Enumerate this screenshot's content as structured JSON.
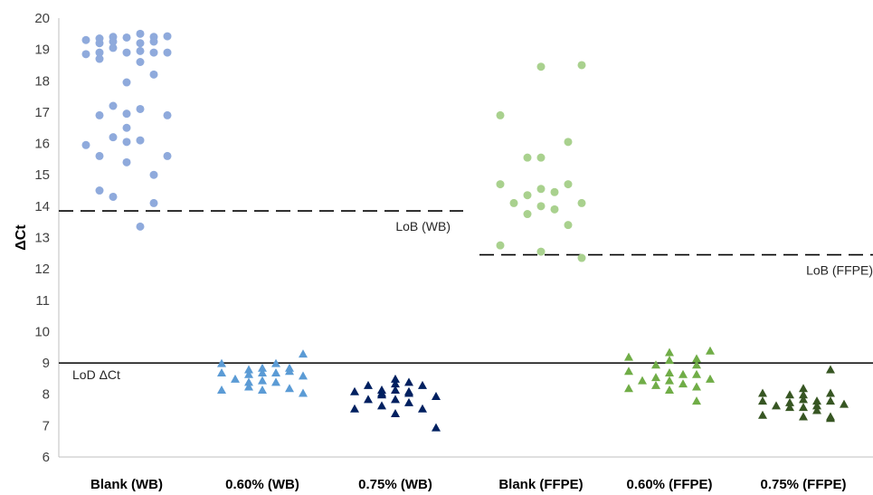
{
  "chart_data": {
    "type": "scatter",
    "ylabel": "ΔCt",
    "ylim": [
      6,
      20
    ],
    "yticks": [
      6,
      7,
      8,
      9,
      10,
      11,
      12,
      13,
      14,
      15,
      16,
      17,
      18,
      19,
      20
    ],
    "categories": [
      "Blank (WB)",
      "0.60% (WB)",
      "0.75% (WB)",
      "Blank (FFPE)",
      "0.60% (FFPE)",
      "0.75% (FFPE)"
    ],
    "series": [
      {
        "category": "Blank (WB)",
        "marker": "circle",
        "color": "#8faadc",
        "points": [
          [
            -0.45,
            19.3
          ],
          [
            -0.3,
            19.35
          ],
          [
            -0.3,
            19.2
          ],
          [
            -0.15,
            19.4
          ],
          [
            -0.15,
            19.25
          ],
          [
            0.0,
            19.38
          ],
          [
            0.15,
            19.5
          ],
          [
            0.15,
            19.2
          ],
          [
            0.3,
            19.4
          ],
          [
            0.3,
            19.25
          ],
          [
            0.45,
            19.42
          ],
          [
            -0.45,
            18.85
          ],
          [
            -0.3,
            18.9
          ],
          [
            -0.3,
            18.7
          ],
          [
            -0.15,
            19.05
          ],
          [
            0.0,
            18.9
          ],
          [
            0.15,
            18.95
          ],
          [
            0.15,
            18.6
          ],
          [
            0.3,
            18.9
          ],
          [
            0.45,
            18.9
          ],
          [
            0.3,
            18.2
          ],
          [
            0.0,
            17.95
          ],
          [
            -0.15,
            17.2
          ],
          [
            0.15,
            17.1
          ],
          [
            -0.3,
            16.9
          ],
          [
            0.0,
            16.95
          ],
          [
            0.45,
            16.9
          ],
          [
            0.0,
            16.5
          ],
          [
            -0.15,
            16.2
          ],
          [
            0.0,
            16.05
          ],
          [
            0.15,
            16.1
          ],
          [
            -0.45,
            15.95
          ],
          [
            -0.3,
            15.6
          ],
          [
            0.45,
            15.6
          ],
          [
            0.0,
            15.4
          ],
          [
            0.3,
            15.0
          ],
          [
            -0.3,
            14.5
          ],
          [
            -0.15,
            14.3
          ],
          [
            0.3,
            14.1
          ],
          [
            0.15,
            13.35
          ]
        ]
      },
      {
        "category": "0.60% (WB)",
        "marker": "triangle",
        "color": "#5b9bd5",
        "points": [
          [
            -0.45,
            9.0
          ],
          [
            -0.45,
            8.7
          ],
          [
            -0.45,
            8.15
          ],
          [
            -0.3,
            8.5
          ],
          [
            -0.15,
            8.8
          ],
          [
            -0.15,
            8.65
          ],
          [
            -0.15,
            8.4
          ],
          [
            -0.15,
            8.25
          ],
          [
            0.0,
            8.85
          ],
          [
            0.0,
            8.7
          ],
          [
            0.0,
            8.45
          ],
          [
            0.0,
            8.15
          ],
          [
            0.15,
            9.0
          ],
          [
            0.15,
            8.7
          ],
          [
            0.15,
            8.4
          ],
          [
            0.3,
            8.85
          ],
          [
            0.3,
            8.75
          ],
          [
            0.3,
            8.2
          ],
          [
            0.45,
            9.3
          ],
          [
            0.45,
            8.6
          ],
          [
            0.45,
            8.05
          ]
        ]
      },
      {
        "category": "0.75% (WB)",
        "marker": "triangle",
        "color": "#002060",
        "points": [
          [
            -0.45,
            8.1
          ],
          [
            -0.45,
            7.55
          ],
          [
            -0.3,
            8.3
          ],
          [
            -0.3,
            7.85
          ],
          [
            -0.15,
            8.05
          ],
          [
            -0.15,
            7.65
          ],
          [
            0.0,
            8.5
          ],
          [
            0.0,
            8.15
          ],
          [
            0.0,
            7.85
          ],
          [
            0.0,
            7.4
          ],
          [
            0.15,
            8.4
          ],
          [
            0.15,
            8.05
          ],
          [
            0.15,
            7.75
          ],
          [
            0.3,
            8.3
          ],
          [
            0.3,
            7.55
          ],
          [
            0.45,
            7.95
          ],
          [
            0.45,
            6.95
          ],
          [
            -0.15,
            8.0
          ],
          [
            0.0,
            8.35
          ],
          [
            0.15,
            8.1
          ],
          [
            -0.15,
            8.15
          ]
        ]
      },
      {
        "category": "Blank (FFPE)",
        "marker": "circle",
        "color": "#a9d18e",
        "points": [
          [
            -0.45,
            16.9
          ],
          [
            0.0,
            18.45
          ],
          [
            0.45,
            18.5
          ],
          [
            -0.45,
            14.7
          ],
          [
            -0.3,
            14.1
          ],
          [
            -0.15,
            15.55
          ],
          [
            -0.15,
            14.35
          ],
          [
            -0.15,
            13.75
          ],
          [
            0.0,
            15.55
          ],
          [
            0.0,
            14.55
          ],
          [
            0.0,
            14.0
          ],
          [
            0.15,
            14.45
          ],
          [
            0.15,
            13.9
          ],
          [
            0.3,
            16.05
          ],
          [
            0.3,
            14.7
          ],
          [
            0.3,
            13.4
          ],
          [
            0.45,
            14.1
          ],
          [
            -0.45,
            12.75
          ],
          [
            0.0,
            12.55
          ],
          [
            0.45,
            12.35
          ]
        ]
      },
      {
        "category": "0.60% (FFPE)",
        "marker": "triangle",
        "color": "#70ad47",
        "points": [
          [
            -0.45,
            9.2
          ],
          [
            -0.45,
            8.75
          ],
          [
            -0.45,
            8.2
          ],
          [
            -0.3,
            8.45
          ],
          [
            -0.15,
            8.95
          ],
          [
            -0.15,
            8.55
          ],
          [
            -0.15,
            8.3
          ],
          [
            0.0,
            9.35
          ],
          [
            0.0,
            9.1
          ],
          [
            0.0,
            8.7
          ],
          [
            0.0,
            8.45
          ],
          [
            0.0,
            8.15
          ],
          [
            0.15,
            8.65
          ],
          [
            0.15,
            8.35
          ],
          [
            0.3,
            9.15
          ],
          [
            0.3,
            8.95
          ],
          [
            0.3,
            8.65
          ],
          [
            0.3,
            8.25
          ],
          [
            0.3,
            7.8
          ],
          [
            0.45,
            9.4
          ],
          [
            0.45,
            8.5
          ]
        ]
      },
      {
        "category": "0.75% (FFPE)",
        "marker": "triangle",
        "color": "#375623",
        "points": [
          [
            -0.45,
            8.05
          ],
          [
            -0.45,
            7.8
          ],
          [
            -0.45,
            7.35
          ],
          [
            -0.3,
            7.65
          ],
          [
            -0.15,
            8.0
          ],
          [
            -0.15,
            7.75
          ],
          [
            -0.15,
            7.6
          ],
          [
            0.0,
            8.2
          ],
          [
            0.0,
            8.0
          ],
          [
            0.0,
            7.85
          ],
          [
            0.0,
            7.6
          ],
          [
            0.0,
            7.3
          ],
          [
            0.15,
            7.8
          ],
          [
            0.15,
            7.65
          ],
          [
            0.3,
            8.05
          ],
          [
            0.3,
            7.8
          ],
          [
            0.3,
            7.3
          ],
          [
            0.3,
            7.25
          ],
          [
            0.3,
            8.8
          ],
          [
            0.45,
            7.7
          ],
          [
            0.15,
            7.5
          ]
        ]
      }
    ],
    "reference_lines": [
      {
        "label": "LoB (WB)",
        "y": 13.85,
        "style": "dashed",
        "from_category": 0,
        "to_category": 2
      },
      {
        "label": "LoB (FFPE)",
        "y": 12.45,
        "style": "dashed",
        "from_category": 3,
        "to_category": 5
      },
      {
        "label": "LoD ΔCt",
        "y": 9.0,
        "style": "solid",
        "from_category": 0,
        "to_category": 5
      }
    ],
    "grid": false,
    "legend": "none"
  }
}
